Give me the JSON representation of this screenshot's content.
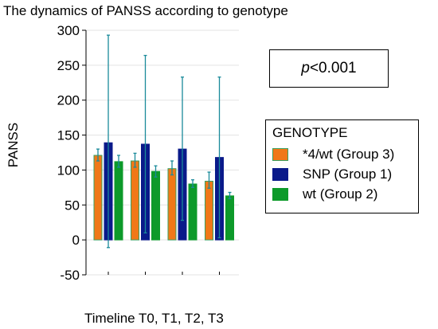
{
  "chart_data": {
    "type": "bar",
    "title": "The dynamics of PANSS according to genotype",
    "xlabel": "Timeline T0, T1, T2, T3",
    "ylabel": "PANSS",
    "ylim": [
      -50,
      300
    ],
    "yticks": [
      -50,
      0,
      50,
      100,
      150,
      200,
      250,
      300
    ],
    "categories": [
      "T0",
      "T1",
      "T2",
      "T3"
    ],
    "grid": true,
    "legend_position": "right",
    "legend_title": "GENOTYPE",
    "annotation": {
      "italic": "p",
      "rest": "<0.001"
    },
    "series": [
      {
        "name": "*4/wt (Group 3)",
        "color": "#f07818",
        "edge": "#3aa060",
        "values": [
          121,
          113,
          102,
          84
        ],
        "lower": [
          113,
          104,
          93,
          74
        ],
        "upper": [
          130,
          124,
          113,
          97
        ]
      },
      {
        "name": "SNP (Group 1)",
        "color": "#0a1a8a",
        "edge": "#0a1a8a",
        "values": [
          139,
          137,
          130,
          118
        ],
        "lower": [
          -11,
          10,
          28,
          3
        ],
        "upper": [
          293,
          264,
          233,
          233
        ]
      },
      {
        "name": "wt (Group 2)",
        "color": "#0d9a2a",
        "edge": "#0d9a2a",
        "values": [
          112,
          98,
          80,
          63
        ],
        "lower": [
          104,
          90,
          75,
          59
        ],
        "upper": [
          121,
          106,
          86,
          68
        ]
      }
    ]
  }
}
